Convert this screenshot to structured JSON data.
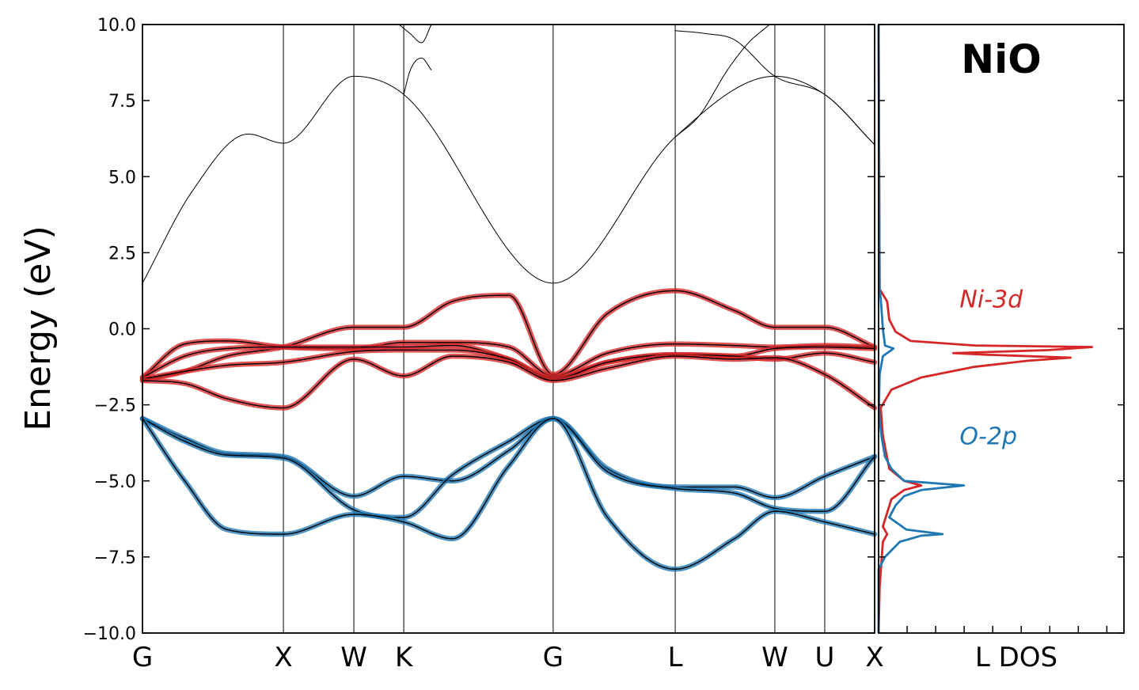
{
  "chart_data": [
    {
      "type": "line",
      "ylabel": "Energy (eV)",
      "ylim": [
        -10,
        10
      ],
      "yticks": [
        -10.0,
        -7.5,
        -5.0,
        -2.5,
        0.0,
        2.5,
        5.0,
        7.5,
        10.0
      ],
      "ytick_labels": [
        "−10.0",
        "−7.5",
        "−5.0",
        "−2.5",
        "0.0",
        "2.5",
        "5.0",
        "7.5",
        "10.0"
      ],
      "kpoints": [
        {
          "label": "G",
          "x": 0.0
        },
        {
          "label": "X",
          "x": 1.0
        },
        {
          "label": "W",
          "x": 1.5
        },
        {
          "label": "K",
          "x": 1.854
        },
        {
          "label": "G",
          "x": 2.914
        },
        {
          "label": "L",
          "x": 3.78
        },
        {
          "label": "W",
          "x": 4.487
        },
        {
          "label": "U",
          "x": 4.841
        },
        {
          "label": "X",
          "x": 5.195
        }
      ],
      "xlim": [
        0,
        5.195
      ],
      "colors": {
        "ni_3d": "#d62728",
        "o_2p": "#1f77b4",
        "band": "#000000"
      },
      "series": [
        {
          "group": "conduction",
          "x": [
            0,
            0.35,
            0.75,
            1.0,
            1.5,
            1.854,
            2.914,
            3.78,
            4.487,
            4.841,
            5.195
          ],
          "y": [
            1.5,
            4.5,
            6.4,
            6.1,
            8.3,
            7.7,
            1.5,
            6.3,
            8.3,
            7.7,
            6.05
          ]
        },
        {
          "group": "conduction",
          "x": [
            1.854,
            1.9,
            1.98,
            2.05
          ],
          "y": [
            7.7,
            8.5,
            8.9,
            8.5
          ]
        },
        {
          "group": "conduction",
          "x": [
            1.82,
            1.9,
            1.98,
            2.05
          ],
          "y": [
            10.0,
            9.7,
            9.4,
            10.0
          ]
        },
        {
          "group": "conduction",
          "x": [
            3.78,
            4.0,
            4.2,
            4.487,
            4.841,
            5.195
          ],
          "y": [
            9.8,
            9.7,
            9.5,
            8.3,
            7.7,
            6.05
          ]
        },
        {
          "group": "conduction",
          "x": [
            3.78,
            3.95,
            4.15,
            4.3,
            4.45
          ],
          "y": [
            6.3,
            7.0,
            8.5,
            9.4,
            10.0
          ]
        },
        {
          "group": "ni_3d",
          "x": [
            0,
            0.3,
            0.6,
            1.0,
            1.5,
            1.854,
            2.2,
            2.6,
            2.914,
            3.3,
            3.78,
            4.2,
            4.487,
            4.841,
            5.195
          ],
          "y": [
            -1.7,
            -1.4,
            -0.9,
            -0.6,
            0.05,
            0.05,
            0.9,
            1.1,
            -1.5,
            0.5,
            1.25,
            0.6,
            0.05,
            0.05,
            -0.6
          ]
        },
        {
          "group": "ni_3d",
          "x": [
            0,
            0.3,
            0.6,
            1.0,
            1.5,
            1.854,
            2.2,
            2.6,
            2.914,
            3.3,
            3.78,
            4.2,
            4.487,
            4.841,
            5.195
          ],
          "y": [
            -1.6,
            -0.5,
            -0.4,
            -0.6,
            -0.65,
            -0.45,
            -0.45,
            -0.6,
            -1.55,
            -0.8,
            -0.5,
            -0.55,
            -0.6,
            -0.55,
            -0.6
          ]
        },
        {
          "group": "ni_3d",
          "x": [
            0,
            0.3,
            0.6,
            1.0,
            1.5,
            1.854,
            2.2,
            2.6,
            2.914,
            3.3,
            3.78,
            4.2,
            4.487,
            4.841,
            5.195
          ],
          "y": [
            -1.6,
            -0.9,
            -0.65,
            -0.6,
            -0.6,
            -0.6,
            -0.55,
            -1.0,
            -1.6,
            -1.1,
            -0.85,
            -0.9,
            -0.65,
            -0.6,
            -0.65
          ]
        },
        {
          "group": "ni_3d",
          "x": [
            0,
            0.3,
            0.6,
            1.0,
            1.5,
            1.854,
            2.2,
            2.6,
            2.914,
            3.3,
            3.78,
            4.2,
            4.487,
            4.841,
            5.195
          ],
          "y": [
            -1.65,
            -1.4,
            -1.2,
            -1.1,
            -0.75,
            -0.7,
            -0.7,
            -1.0,
            -1.65,
            -1.1,
            -0.85,
            -0.9,
            -1.0,
            -0.8,
            -1.1
          ]
        },
        {
          "group": "ni_3d",
          "x": [
            0,
            0.3,
            0.6,
            1.0,
            1.5,
            1.854,
            2.2,
            2.6,
            2.914,
            3.3,
            3.78,
            4.2,
            4.487,
            4.841,
            5.195
          ],
          "y": [
            -1.7,
            -1.8,
            -2.3,
            -2.6,
            -1.0,
            -1.55,
            -0.9,
            -1.1,
            -1.7,
            -1.3,
            -0.9,
            -1.0,
            -0.95,
            -1.5,
            -2.6
          ]
        },
        {
          "group": "o_2p",
          "x": [
            0,
            0.3,
            0.6,
            1.0,
            1.5,
            1.854,
            2.2,
            2.6,
            2.914,
            3.3,
            3.78,
            4.2,
            4.487,
            4.841,
            5.195
          ],
          "y": [
            -2.95,
            -3.6,
            -4.1,
            -4.2,
            -5.5,
            -4.85,
            -5.0,
            -4.0,
            -2.95,
            -4.6,
            -5.2,
            -5.2,
            -5.55,
            -4.85,
            -4.2
          ]
        },
        {
          "group": "o_2p",
          "x": [
            0,
            0.3,
            0.6,
            1.0,
            1.5,
            1.854,
            2.2,
            2.6,
            2.914,
            3.3,
            3.78,
            4.2,
            4.487,
            4.841,
            5.195
          ],
          "y": [
            -2.95,
            -3.7,
            -4.15,
            -4.25,
            -5.95,
            -6.2,
            -4.8,
            -3.7,
            -2.95,
            -4.7,
            -5.25,
            -5.4,
            -5.9,
            -6.0,
            -4.2
          ]
        },
        {
          "group": "o_2p",
          "x": [
            0,
            0.3,
            0.6,
            1.0,
            1.5,
            1.854,
            2.2,
            2.6,
            2.914,
            3.3,
            3.78,
            4.2,
            4.487,
            4.841,
            5.195
          ],
          "y": [
            -2.95,
            -5.0,
            -6.6,
            -6.75,
            -6.1,
            -6.35,
            -6.9,
            -4.5,
            -2.95,
            -6.2,
            -7.9,
            -6.9,
            -6.0,
            -6.35,
            -6.75
          ]
        }
      ]
    },
    {
      "type": "line",
      "title": "NiO",
      "xlabel": "DOS",
      "ylim": [
        -10,
        10
      ],
      "annotations": [
        {
          "text": "Ni-3d",
          "color": "#d62728",
          "x": 0.38,
          "y": 0.7
        },
        {
          "text": "O-2p",
          "color": "#1f77b4",
          "x": 0.38,
          "y": -3.8
        }
      ],
      "series": [
        {
          "name": "Ni-3d",
          "color": "#d62728",
          "energy": [
            -10,
            -8.5,
            -7.0,
            -6.75,
            -6.5,
            -5.6,
            -5.3,
            -5.15,
            -5.0,
            -4.6,
            -3.5,
            -2.6,
            -2.0,
            -1.6,
            -1.25,
            -1.05,
            -0.95,
            -0.85,
            -0.8,
            -0.7,
            -0.6,
            -0.55,
            -0.4,
            -0.1,
            0.3,
            0.9,
            1.3,
            10
          ],
          "dos": [
            0,
            0.005,
            0.02,
            0.04,
            0.02,
            0.06,
            0.12,
            0.2,
            0.12,
            0.05,
            0.02,
            0.01,
            0.06,
            0.2,
            0.45,
            0.7,
            0.9,
            0.5,
            0.35,
            0.8,
            1.0,
            0.45,
            0.15,
            0.08,
            0.05,
            0.04,
            0.005,
            0
          ]
        },
        {
          "name": "O-2p",
          "color": "#1f77b4",
          "energy": [
            -10,
            -7.9,
            -7.5,
            -7.0,
            -6.8,
            -6.75,
            -6.6,
            -6.2,
            -5.8,
            -5.5,
            -5.3,
            -5.15,
            -5.0,
            -4.6,
            -4.2,
            -3.6,
            -3.0,
            -2.5,
            -1.5,
            -0.9,
            -0.65,
            -0.55,
            0.0,
            1.0,
            1.3,
            10
          ],
          "dos": [
            0,
            0.0,
            0.03,
            0.1,
            0.2,
            0.3,
            0.13,
            0.05,
            0.08,
            0.12,
            0.2,
            0.4,
            0.12,
            0.06,
            0.03,
            0.015,
            0.005,
            0.002,
            0.005,
            0.02,
            0.07,
            0.03,
            0.02,
            0.01,
            0.005,
            0
          ]
        }
      ]
    }
  ]
}
